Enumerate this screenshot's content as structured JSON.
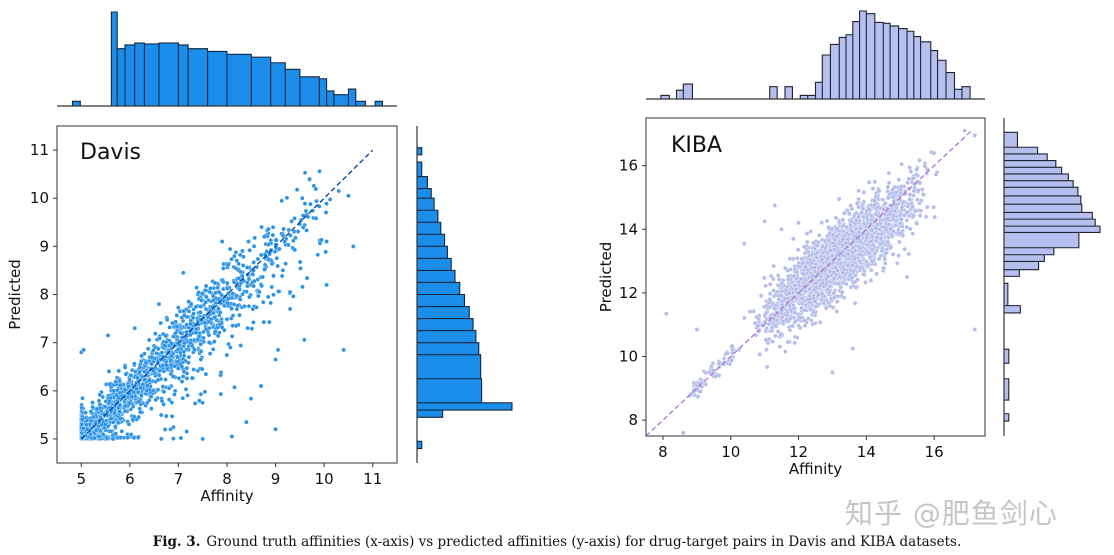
{
  "chart_data": [
    {
      "type": "scatter",
      "panel_label": "Davis",
      "xlabel": "Affinity",
      "ylabel": "Predicted",
      "xlim": [
        4.5,
        11.5
      ],
      "ylim": [
        4.5,
        11.5
      ],
      "xticks": [
        "5",
        "6",
        "7",
        "8",
        "9",
        "10",
        "11"
      ],
      "yticks": [
        "5",
        "6",
        "7",
        "8",
        "9",
        "10",
        "11"
      ],
      "grid": false,
      "identity_line": {
        "from": 5,
        "to": 11,
        "style": "dashed",
        "color": "#0b4a9a"
      },
      "point_color": "#2a93e6",
      "hist_color": "#1a8eea",
      "hist_edge": "#13283f",
      "outlier_points": [
        [
          5.0,
          6.8
        ],
        [
          5.05,
          6.85
        ],
        [
          7.9,
          9.1
        ],
        [
          10.05,
          8.2
        ],
        [
          10.6,
          9.0
        ],
        [
          10.4,
          6.85
        ],
        [
          9.0,
          5.2
        ],
        [
          8.7,
          6.1
        ],
        [
          9.7,
          10.4
        ],
        [
          10.05,
          9.1
        ],
        [
          9.05,
          6.85
        ],
        [
          9.0,
          6.65
        ],
        [
          8.4,
          5.35
        ],
        [
          7.5,
          5.0
        ],
        [
          8.1,
          5.05
        ],
        [
          5.55,
          7.15
        ],
        [
          6.1,
          7.3
        ],
        [
          6.6,
          7.8
        ],
        [
          7.1,
          8.45
        ],
        [
          9.3,
          8.05
        ],
        [
          9.3,
          7.7
        ],
        [
          10.3,
          10.15
        ],
        [
          10.5,
          10.05
        ],
        [
          9.55,
          10.0
        ]
      ],
      "x_histogram": [
        [
          4.82,
          4.98,
          5
        ],
        [
          5.62,
          5.74,
          100
        ],
        [
          5.74,
          5.9,
          61
        ],
        [
          5.9,
          6.1,
          65
        ],
        [
          6.1,
          6.3,
          67
        ],
        [
          6.3,
          6.6,
          66
        ],
        [
          6.6,
          7.0,
          67
        ],
        [
          7.0,
          7.2,
          65
        ],
        [
          7.2,
          7.6,
          61
        ],
        [
          7.6,
          8.0,
          58
        ],
        [
          8.0,
          8.5,
          55
        ],
        [
          8.5,
          8.9,
          52
        ],
        [
          8.9,
          9.2,
          46
        ],
        [
          9.2,
          9.5,
          39
        ],
        [
          9.5,
          9.9,
          31
        ],
        [
          9.9,
          10.05,
          29
        ],
        [
          10.05,
          10.2,
          16
        ],
        [
          10.2,
          10.5,
          12
        ],
        [
          10.5,
          10.65,
          18
        ],
        [
          10.65,
          10.85,
          5
        ],
        [
          11.05,
          11.2,
          5
        ]
      ],
      "y_histogram": [
        [
          4.8,
          4.95,
          5
        ],
        [
          5.45,
          5.6,
          27
        ],
        [
          5.6,
          5.75,
          100
        ],
        [
          5.75,
          6.25,
          68
        ],
        [
          6.25,
          6.75,
          67
        ],
        [
          6.75,
          7.0,
          65
        ],
        [
          7.0,
          7.25,
          62
        ],
        [
          7.25,
          7.5,
          59
        ],
        [
          7.5,
          7.75,
          55
        ],
        [
          7.75,
          8.0,
          50
        ],
        [
          8.0,
          8.25,
          45
        ],
        [
          8.25,
          8.5,
          40
        ],
        [
          8.5,
          8.75,
          36
        ],
        [
          8.75,
          9.0,
          32
        ],
        [
          9.0,
          9.25,
          29
        ],
        [
          9.25,
          9.5,
          25
        ],
        [
          9.5,
          9.75,
          22
        ],
        [
          9.75,
          10.0,
          18
        ],
        [
          10.0,
          10.2,
          15
        ],
        [
          10.2,
          10.45,
          11
        ],
        [
          10.45,
          10.75,
          5
        ],
        [
          10.9,
          11.05,
          5
        ]
      ]
    },
    {
      "type": "scatter",
      "panel_label": "KIBA",
      "xlabel": "Affinity",
      "ylabel": "Predicted",
      "xlim": [
        7.5,
        17.5
      ],
      "ylim": [
        7.5,
        17.5
      ],
      "xticks": [
        "8",
        "10",
        "12",
        "14",
        "16"
      ],
      "yticks": [
        "8",
        "10",
        "12",
        "14",
        "16"
      ],
      "grid": false,
      "identity_line": {
        "from": 7.5,
        "to": 17.1,
        "style": "dashed",
        "color": "#b07ad8"
      },
      "point_color": "#b4bde9",
      "hist_color": "#b6bfee",
      "hist_edge": "#1d2333",
      "outlier_points": [
        [
          8.1,
          11.35
        ],
        [
          9.0,
          10.85
        ],
        [
          17.2,
          10.85
        ],
        [
          13.0,
          9.5
        ],
        [
          8.6,
          7.6
        ],
        [
          17.2,
          16.95
        ],
        [
          16.9,
          17.1
        ],
        [
          11.3,
          14.75
        ],
        [
          13.2,
          14.95
        ],
        [
          10.4,
          13.55
        ],
        [
          11.0,
          14.25
        ],
        [
          13.6,
          10.25
        ],
        [
          15.2,
          12.5
        ],
        [
          16.0,
          16.4
        ],
        [
          12.0,
          14.2
        ],
        [
          11.5,
          14.0
        ]
      ],
      "x_histogram": [
        [
          7.94,
          8.19,
          4
        ],
        [
          8.4,
          8.6,
          10
        ],
        [
          8.6,
          8.87,
          17
        ],
        [
          11.15,
          11.37,
          14
        ],
        [
          11.6,
          11.82,
          14
        ],
        [
          12.05,
          12.27,
          4
        ],
        [
          12.27,
          12.5,
          4
        ],
        [
          12.5,
          12.7,
          19
        ],
        [
          12.7,
          12.94,
          50
        ],
        [
          12.94,
          13.2,
          62
        ],
        [
          13.2,
          13.4,
          70
        ],
        [
          13.4,
          13.6,
          73
        ],
        [
          13.6,
          13.8,
          88
        ],
        [
          13.8,
          14.0,
          100
        ],
        [
          14.0,
          14.25,
          97
        ],
        [
          14.25,
          14.5,
          87
        ],
        [
          14.5,
          14.7,
          86
        ],
        [
          14.7,
          14.95,
          83
        ],
        [
          14.95,
          15.2,
          80
        ],
        [
          15.2,
          15.4,
          77
        ],
        [
          15.4,
          15.6,
          71
        ],
        [
          15.6,
          15.9,
          65
        ],
        [
          15.9,
          16.1,
          55
        ],
        [
          16.1,
          16.35,
          44
        ],
        [
          16.35,
          16.6,
          30
        ],
        [
          16.6,
          16.82,
          11
        ],
        [
          16.82,
          17.06,
          14
        ]
      ],
      "y_histogram": [
        [
          16.58,
          17.05,
          14
        ],
        [
          16.37,
          16.58,
          35
        ],
        [
          16.16,
          16.37,
          45
        ],
        [
          15.95,
          16.16,
          54
        ],
        [
          15.74,
          15.95,
          60
        ],
        [
          15.53,
          15.74,
          67
        ],
        [
          15.32,
          15.53,
          72
        ],
        [
          15.05,
          15.32,
          77
        ],
        [
          14.79,
          15.05,
          80
        ],
        [
          14.53,
          14.79,
          81
        ],
        [
          14.32,
          14.53,
          92
        ],
        [
          14.1,
          14.32,
          95
        ],
        [
          13.9,
          14.1,
          100
        ],
        [
          13.42,
          13.9,
          78
        ],
        [
          13.2,
          13.42,
          52
        ],
        [
          12.99,
          13.2,
          42
        ],
        [
          12.73,
          12.99,
          36
        ],
        [
          12.52,
          12.73,
          16
        ],
        [
          11.6,
          12.3,
          4
        ],
        [
          11.37,
          11.6,
          17
        ],
        [
          9.79,
          10.23,
          5
        ],
        [
          8.63,
          9.3,
          5
        ],
        [
          7.97,
          8.2,
          5
        ]
      ]
    }
  ],
  "caption": {
    "label": "Fig. 3.",
    "text": "Ground truth affinities (x-axis) vs predicted affinities (y-axis) for drug-target pairs in Davis and KIBA datasets."
  },
  "watermark": "知乎 @肥鱼剑心"
}
